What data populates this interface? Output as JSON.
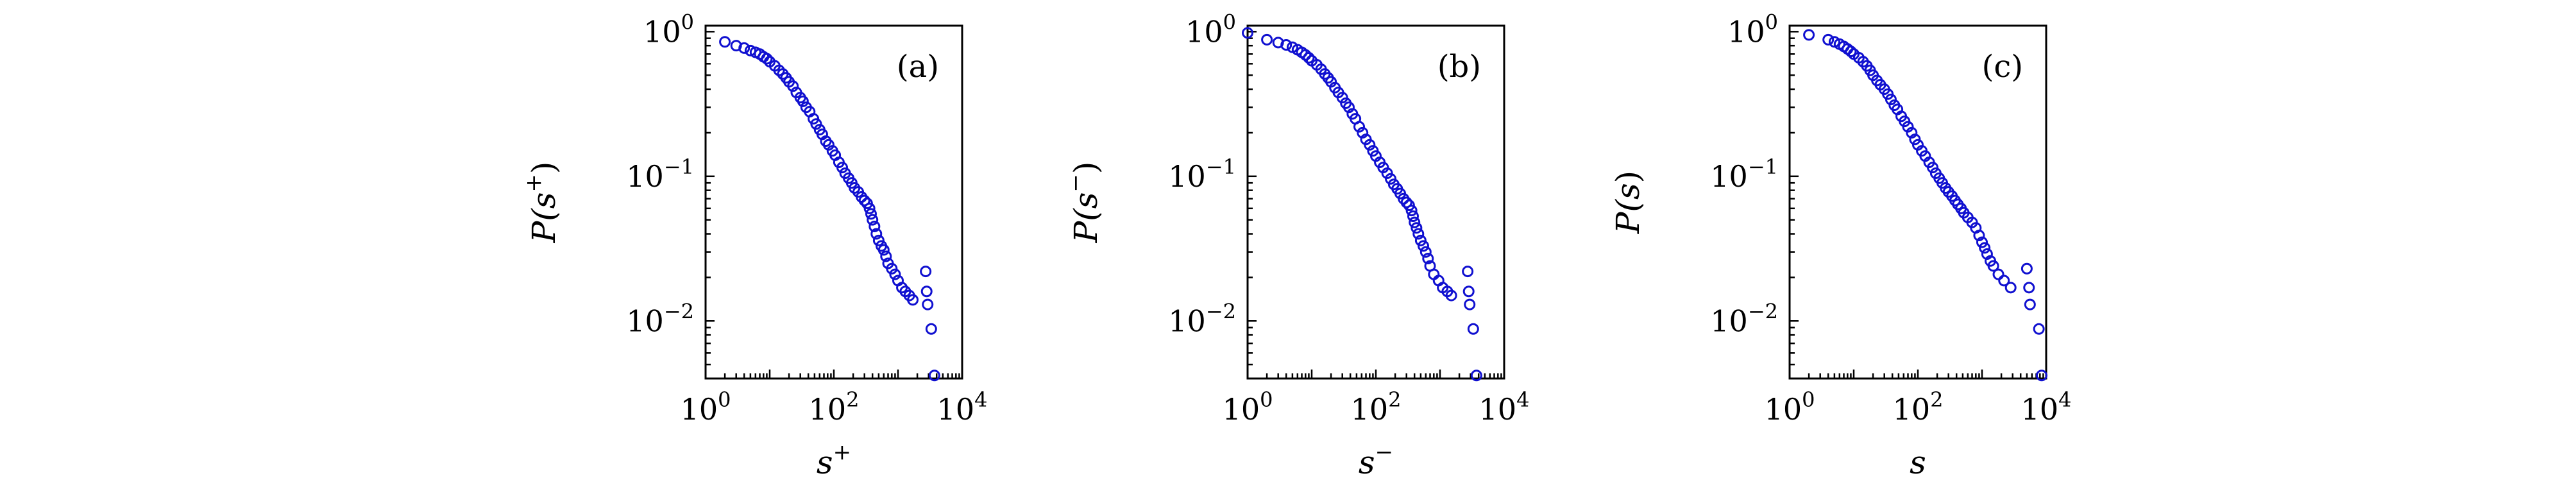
{
  "chart_data": [
    {
      "type": "scatter",
      "panel_label": "(a)",
      "xlabel_base": "s",
      "xlabel_sup": "+",
      "ylabel_base": "P(s",
      "ylabel_sup": "+",
      "ylabel_close": ")",
      "xscale": "log",
      "yscale": "log",
      "xlim": [
        1,
        10000
      ],
      "ylim": [
        0.004,
        1.1
      ],
      "x_ticks": [
        {
          "value": 1,
          "base": "10",
          "exp": "0"
        },
        {
          "value": 100,
          "base": "10",
          "exp": "2"
        },
        {
          "value": 10000,
          "base": "10",
          "exp": "4"
        }
      ],
      "y_ticks": [
        {
          "value": 1,
          "base": "10",
          "exp": "0"
        },
        {
          "value": 0.1,
          "base": "10",
          "exp": "−1"
        },
        {
          "value": 0.01,
          "base": "10",
          "exp": "−2"
        }
      ],
      "marker_color": "#1010d0",
      "points": [
        [
          2,
          0.85
        ],
        [
          3,
          0.8
        ],
        [
          4,
          0.77
        ],
        [
          5,
          0.74
        ],
        [
          6,
          0.72
        ],
        [
          7,
          0.7
        ],
        [
          8,
          0.67
        ],
        [
          9,
          0.65
        ],
        [
          10,
          0.62
        ],
        [
          12,
          0.58
        ],
        [
          14,
          0.54
        ],
        [
          16,
          0.51
        ],
        [
          18,
          0.48
        ],
        [
          20,
          0.45
        ],
        [
          23,
          0.42
        ],
        [
          26,
          0.38
        ],
        [
          30,
          0.35
        ],
        [
          33,
          0.33
        ],
        [
          37,
          0.3
        ],
        [
          42,
          0.28
        ],
        [
          48,
          0.25
        ],
        [
          53,
          0.23
        ],
        [
          60,
          0.21
        ],
        [
          66,
          0.195
        ],
        [
          75,
          0.175
        ],
        [
          83,
          0.165
        ],
        [
          95,
          0.15
        ],
        [
          105,
          0.14
        ],
        [
          120,
          0.125
        ],
        [
          135,
          0.115
        ],
        [
          150,
          0.105
        ],
        [
          170,
          0.097
        ],
        [
          190,
          0.09
        ],
        [
          210,
          0.083
        ],
        [
          240,
          0.078
        ],
        [
          270,
          0.072
        ],
        [
          300,
          0.068
        ],
        [
          330,
          0.065
        ],
        [
          360,
          0.06
        ],
        [
          380,
          0.055
        ],
        [
          400,
          0.05
        ],
        [
          430,
          0.045
        ],
        [
          460,
          0.04
        ],
        [
          500,
          0.036
        ],
        [
          550,
          0.033
        ],
        [
          600,
          0.031
        ],
        [
          650,
          0.028
        ],
        [
          700,
          0.025
        ],
        [
          800,
          0.023
        ],
        [
          900,
          0.021
        ],
        [
          1000,
          0.019
        ],
        [
          1150,
          0.017
        ],
        [
          1300,
          0.016
        ],
        [
          1500,
          0.015
        ],
        [
          1700,
          0.014
        ],
        [
          2700,
          0.022
        ],
        [
          2800,
          0.016
        ],
        [
          2900,
          0.013
        ],
        [
          3300,
          0.0088
        ],
        [
          3700,
          0.0042
        ]
      ]
    },
    {
      "type": "scatter",
      "panel_label": "(b)",
      "xlabel_base": "s",
      "xlabel_sup": "−",
      "ylabel_base": "P(s",
      "ylabel_sup": "−",
      "ylabel_close": ")",
      "xscale": "log",
      "yscale": "log",
      "xlim": [
        1,
        10000
      ],
      "ylim": [
        0.004,
        1.1
      ],
      "x_ticks": [
        {
          "value": 1,
          "base": "10",
          "exp": "0"
        },
        {
          "value": 100,
          "base": "10",
          "exp": "2"
        },
        {
          "value": 10000,
          "base": "10",
          "exp": "4"
        }
      ],
      "y_ticks": [
        {
          "value": 1,
          "base": "10",
          "exp": "0"
        },
        {
          "value": 0.1,
          "base": "10",
          "exp": "−1"
        },
        {
          "value": 0.01,
          "base": "10",
          "exp": "−2"
        }
      ],
      "marker_color": "#1010d0",
      "points": [
        [
          1,
          0.98
        ],
        [
          2,
          0.88
        ],
        [
          3,
          0.84
        ],
        [
          4,
          0.81
        ],
        [
          5,
          0.78
        ],
        [
          6,
          0.75
        ],
        [
          7,
          0.72
        ],
        [
          8,
          0.69
        ],
        [
          9,
          0.66
        ],
        [
          10,
          0.63
        ],
        [
          12,
          0.59
        ],
        [
          14,
          0.55
        ],
        [
          16,
          0.51
        ],
        [
          18,
          0.48
        ],
        [
          20,
          0.45
        ],
        [
          23,
          0.41
        ],
        [
          26,
          0.38
        ],
        [
          30,
          0.35
        ],
        [
          34,
          0.32
        ],
        [
          38,
          0.3
        ],
        [
          43,
          0.27
        ],
        [
          48,
          0.25
        ],
        [
          55,
          0.22
        ],
        [
          62,
          0.2
        ],
        [
          70,
          0.18
        ],
        [
          80,
          0.165
        ],
        [
          90,
          0.15
        ],
        [
          100,
          0.138
        ],
        [
          115,
          0.125
        ],
        [
          130,
          0.115
        ],
        [
          150,
          0.105
        ],
        [
          170,
          0.096
        ],
        [
          190,
          0.088
        ],
        [
          215,
          0.082
        ],
        [
          240,
          0.076
        ],
        [
          270,
          0.07
        ],
        [
          300,
          0.066
        ],
        [
          330,
          0.063
        ],
        [
          360,
          0.058
        ],
        [
          380,
          0.053
        ],
        [
          400,
          0.048
        ],
        [
          430,
          0.044
        ],
        [
          460,
          0.04
        ],
        [
          500,
          0.036
        ],
        [
          550,
          0.033
        ],
        [
          600,
          0.03
        ],
        [
          650,
          0.027
        ],
        [
          700,
          0.024
        ],
        [
          800,
          0.021
        ],
        [
          950,
          0.019
        ],
        [
          1100,
          0.017
        ],
        [
          1300,
          0.016
        ],
        [
          1500,
          0.015
        ],
        [
          2700,
          0.022
        ],
        [
          2800,
          0.016
        ],
        [
          2900,
          0.013
        ],
        [
          3300,
          0.0088
        ],
        [
          3700,
          0.0042
        ]
      ]
    },
    {
      "type": "scatter",
      "panel_label": "(c)",
      "xlabel_base": "s",
      "xlabel_sup": "",
      "ylabel_base": "P(s",
      "ylabel_sup": "",
      "ylabel_close": ")",
      "xscale": "log",
      "yscale": "log",
      "xlim": [
        1,
        10000
      ],
      "ylim": [
        0.004,
        1.1
      ],
      "x_ticks": [
        {
          "value": 1,
          "base": "10",
          "exp": "0"
        },
        {
          "value": 100,
          "base": "10",
          "exp": "2"
        },
        {
          "value": 10000,
          "base": "10",
          "exp": "4"
        }
      ],
      "y_ticks": [
        {
          "value": 1,
          "base": "10",
          "exp": "0"
        },
        {
          "value": 0.1,
          "base": "10",
          "exp": "−1"
        },
        {
          "value": 0.01,
          "base": "10",
          "exp": "−2"
        }
      ],
      "marker_color": "#1010d0",
      "points": [
        [
          2,
          0.95
        ],
        [
          4,
          0.88
        ],
        [
          5,
          0.85
        ],
        [
          6,
          0.82
        ],
        [
          7,
          0.79
        ],
        [
          8,
          0.76
        ],
        [
          9,
          0.73
        ],
        [
          10,
          0.7
        ],
        [
          12,
          0.66
        ],
        [
          14,
          0.62
        ],
        [
          16,
          0.58
        ],
        [
          18,
          0.54
        ],
        [
          20,
          0.5
        ],
        [
          23,
          0.46
        ],
        [
          26,
          0.43
        ],
        [
          30,
          0.4
        ],
        [
          34,
          0.37
        ],
        [
          38,
          0.34
        ],
        [
          43,
          0.31
        ],
        [
          48,
          0.29
        ],
        [
          55,
          0.26
        ],
        [
          62,
          0.24
        ],
        [
          70,
          0.22
        ],
        [
          80,
          0.2
        ],
        [
          90,
          0.18
        ],
        [
          100,
          0.165
        ],
        [
          115,
          0.15
        ],
        [
          130,
          0.138
        ],
        [
          150,
          0.125
        ],
        [
          170,
          0.115
        ],
        [
          190,
          0.105
        ],
        [
          215,
          0.097
        ],
        [
          240,
          0.09
        ],
        [
          270,
          0.083
        ],
        [
          300,
          0.078
        ],
        [
          340,
          0.073
        ],
        [
          380,
          0.068
        ],
        [
          420,
          0.064
        ],
        [
          470,
          0.06
        ],
        [
          520,
          0.056
        ],
        [
          600,
          0.052
        ],
        [
          700,
          0.048
        ],
        [
          800,
          0.044
        ],
        [
          900,
          0.039
        ],
        [
          1000,
          0.035
        ],
        [
          1100,
          0.032
        ],
        [
          1200,
          0.029
        ],
        [
          1350,
          0.026
        ],
        [
          1500,
          0.024
        ],
        [
          1800,
          0.021
        ],
        [
          2200,
          0.019
        ],
        [
          2800,
          0.017
        ],
        [
          5000,
          0.023
        ],
        [
          5400,
          0.017
        ],
        [
          5600,
          0.013
        ],
        [
          7700,
          0.0088
        ],
        [
          8500,
          0.0042
        ]
      ]
    }
  ]
}
